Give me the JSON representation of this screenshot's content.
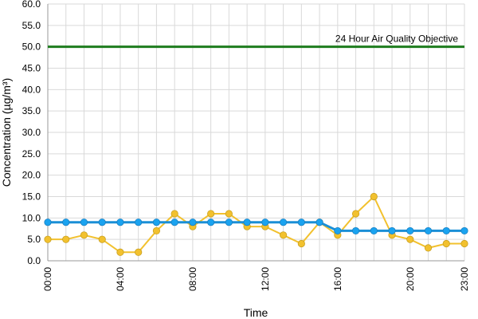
{
  "chart_data": {
    "type": "line",
    "xlabel": "Time",
    "ylabel": "Concentration (µg/m³)",
    "ylim": [
      0,
      60
    ],
    "y_ticks": [
      "0.0",
      "5.0",
      "10.0",
      "15.0",
      "20.0",
      "25.0",
      "30.0",
      "35.0",
      "40.0",
      "45.0",
      "50.0",
      "55.0",
      "60.0"
    ],
    "x_tick_labels": [
      "00:00",
      "04:00",
      "08:00",
      "12:00",
      "16:00",
      "20:00",
      "23:00"
    ],
    "x_tick_hours": [
      0,
      4,
      8,
      12,
      16,
      20,
      23
    ],
    "x": [
      0,
      1,
      2,
      3,
      4,
      5,
      6,
      7,
      8,
      9,
      10,
      11,
      12,
      13,
      14,
      15,
      16,
      17,
      18,
      19,
      20,
      21,
      22,
      23
    ],
    "grid": true,
    "series": [
      {
        "color": "#f2c12e",
        "marker_color": "#f2c12e",
        "values": [
          5,
          5,
          6,
          5,
          2,
          2,
          7,
          11,
          8,
          11,
          11,
          8,
          8,
          6,
          4,
          9,
          6,
          11,
          15,
          6,
          5,
          3,
          4,
          4
        ]
      },
      {
        "color": "#1a8fd6",
        "marker_color": "#1aa3f0",
        "values": [
          9,
          9,
          9,
          9,
          9,
          9,
          9,
          9,
          9,
          9,
          9,
          9,
          9,
          9,
          9,
          9,
          7,
          7,
          7,
          7,
          7,
          7,
          7,
          7
        ]
      }
    ],
    "reference_line": {
      "value": 50,
      "label": "24 Hour Air Quality Objective",
      "color": "#1e7d1e"
    }
  }
}
